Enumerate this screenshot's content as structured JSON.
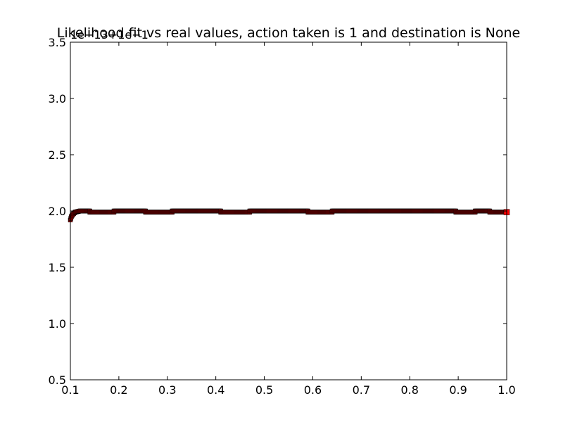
{
  "chart_data": {
    "type": "scatter",
    "title": "Likelihood fit vs real values, action taken is 1 and destination is None",
    "offset_label": "1e−13+1e−1",
    "xlabel": "",
    "ylabel": "",
    "xlim": [
      0.1,
      1.0
    ],
    "ylim": [
      0.5,
      3.5
    ],
    "xticks": [
      0.1,
      0.2,
      0.3,
      0.4,
      0.5,
      0.6,
      0.7,
      0.8,
      0.9,
      1.0
    ],
    "xtick_labels": [
      "0.1",
      "0.2",
      "0.3",
      "0.4",
      "0.5",
      "0.6",
      "0.7",
      "0.8",
      "0.9",
      "1.0"
    ],
    "yticks": [
      0.5,
      1.0,
      1.5,
      2.0,
      2.5,
      3.0,
      3.5
    ],
    "ytick_labels": [
      "0.5",
      "1.0",
      "1.5",
      "2.0",
      "2.5",
      "3.0",
      "3.5"
    ],
    "grid": false,
    "marker_color": "#8b0000",
    "marker_edge_color": "#000000",
    "last_marker_color": "#ff0000",
    "series": [
      {
        "segments": [
          {
            "x": [
              0.1,
              0.102
            ],
            "y": [
              1.92,
              1.95
            ]
          },
          {
            "x": [
              0.102,
              0.105
            ],
            "y": [
              1.95,
              1.97
            ]
          },
          {
            "x": [
              0.105,
              0.11
            ],
            "y": [
              1.97,
              1.99
            ]
          },
          {
            "x": [
              0.11,
              0.12
            ],
            "y": [
              1.99,
              2.0
            ]
          },
          {
            "x": [
              0.12,
              0.14
            ],
            "y": [
              2.0,
              2.0
            ]
          },
          {
            "x": [
              0.14,
              0.19
            ],
            "y": [
              1.99,
              1.99
            ]
          },
          {
            "x": [
              0.19,
              0.255
            ],
            "y": [
              2.0,
              2.0
            ]
          },
          {
            "x": [
              0.255,
              0.31
            ],
            "y": [
              1.99,
              1.99
            ]
          },
          {
            "x": [
              0.31,
              0.41
            ],
            "y": [
              2.0,
              2.0
            ]
          },
          {
            "x": [
              0.41,
              0.47
            ],
            "y": [
              1.99,
              1.99
            ]
          },
          {
            "x": [
              0.47,
              0.59
            ],
            "y": [
              2.0,
              2.0
            ]
          },
          {
            "x": [
              0.59,
              0.64
            ],
            "y": [
              1.99,
              1.99
            ]
          },
          {
            "x": [
              0.64,
              0.895
            ],
            "y": [
              2.0,
              2.0
            ]
          },
          {
            "x": [
              0.895,
              0.935
            ],
            "y": [
              1.99,
              1.99
            ]
          },
          {
            "x": [
              0.935,
              0.965
            ],
            "y": [
              2.0,
              2.0
            ]
          },
          {
            "x": [
              0.965,
              1.0
            ],
            "y": [
              1.99,
              1.99
            ]
          }
        ]
      }
    ]
  }
}
